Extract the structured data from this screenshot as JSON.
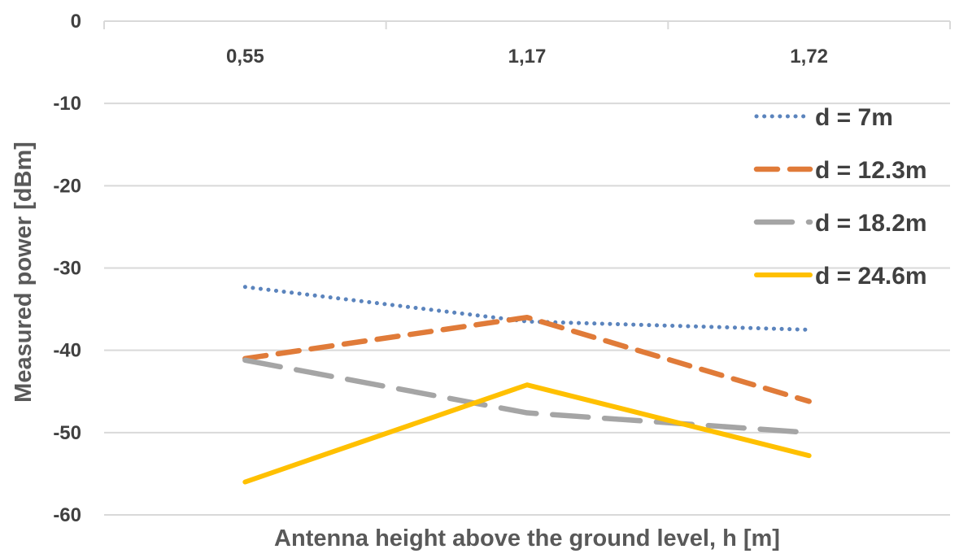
{
  "chart_data": {
    "type": "line",
    "title": "",
    "xlabel": "Antenna height above the ground level, h [m]",
    "ylabel": "Measured power [dBm]",
    "categories": [
      "0,55",
      "1,17",
      "1,72"
    ],
    "ylim": [
      -60,
      0
    ],
    "yticks": [
      "0",
      "-10",
      "-20",
      "-30",
      "-40",
      "-50",
      "-60"
    ],
    "ytick_values": [
      0,
      -10,
      -20,
      -30,
      -40,
      -50,
      -60
    ],
    "grid": true,
    "x_axis_position": "top",
    "legend_position": "right",
    "series": [
      {
        "name": "d = 7m",
        "values": [
          -32.3,
          -36.5,
          -37.5
        ],
        "color": "#5B84BD",
        "style": "dotted"
      },
      {
        "name": "d = 12.3m",
        "values": [
          -41,
          -36,
          -46.2
        ],
        "color": "#E07B39",
        "style": "dashed"
      },
      {
        "name": "d = 18.2m",
        "values": [
          -41.2,
          -47.6,
          -50
        ],
        "color": "#A5A5A5",
        "style": "long-dash"
      },
      {
        "name": "d = 24.6m",
        "values": [
          -56,
          -44.2,
          -52.8
        ],
        "color": "#FFC000",
        "style": "solid"
      }
    ]
  }
}
